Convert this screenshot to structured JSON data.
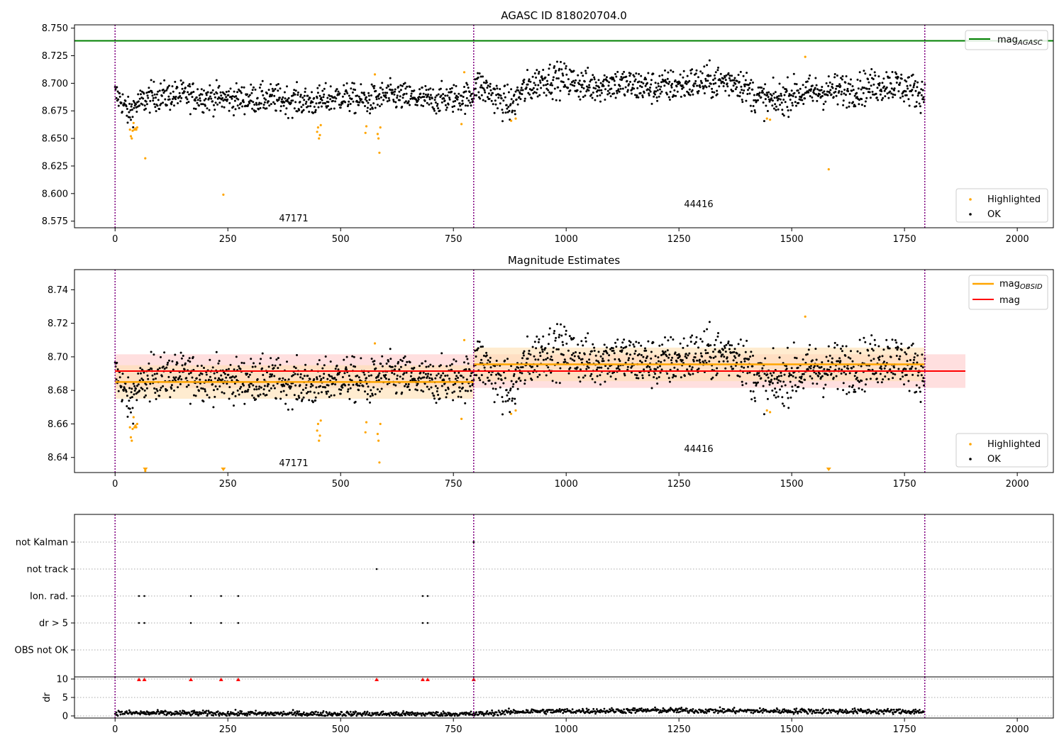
{
  "colors": {
    "ok": "#000000",
    "highlighted": "#ffa500",
    "agasc_line": "#008000",
    "mag_line": "#ff0000",
    "mag_band": "#ffd1d1",
    "obsid_line": "#ffa500",
    "obsid_band": "#ffe0b0",
    "obsid_divider": "#800080",
    "flag_points": "#000000",
    "dr_marker": "#ff0000"
  },
  "chart_data": [
    {
      "type": "scatter",
      "title": "AGASC ID 818020704.0",
      "xlim": [
        -90,
        2080
      ],
      "ylim": [
        8.569,
        8.753
      ],
      "xticks": [
        "0",
        "250",
        "500",
        "750",
        "1000",
        "1250",
        "1500",
        "1750",
        "2000"
      ],
      "yticks": [
        "8.575",
        "8.600",
        "8.625",
        "8.650",
        "8.675",
        "8.700",
        "8.725",
        "8.750"
      ],
      "grid": false,
      "obsid_boundaries": [
        0,
        795,
        1795
      ],
      "obsid_labels": [
        {
          "text": "47171",
          "x": 397,
          "y": 8.577
        },
        {
          "text": "44416",
          "x": 1297,
          "y": 8.589
        }
      ],
      "reference_line": {
        "name": "mag_AGASC",
        "legend_main": "mag",
        "legend_sub": "AGASC",
        "y": 8.7385
      },
      "legend_top": "upper right",
      "legend_bottom": "lower right",
      "series": [
        {
          "name": "Highlighted",
          "legend": "Highlighted",
          "style": "highlighted"
        },
        {
          "name": "OK",
          "legend": "OK",
          "style": "ok"
        }
      ],
      "ok_trend": [
        [
          0,
          8.69
        ],
        [
          15,
          8.684
        ],
        [
          30,
          8.672
        ],
        [
          45,
          8.68
        ],
        [
          80,
          8.688
        ],
        [
          150,
          8.689
        ],
        [
          250,
          8.686
        ],
        [
          350,
          8.686
        ],
        [
          440,
          8.683
        ],
        [
          500,
          8.688
        ],
        [
          560,
          8.684
        ],
        [
          600,
          8.689
        ],
        [
          700,
          8.685
        ],
        [
          793,
          8.688
        ],
        [
          796,
          8.7
        ],
        [
          830,
          8.692
        ],
        [
          860,
          8.683
        ],
        [
          880,
          8.68
        ],
        [
          900,
          8.692
        ],
        [
          950,
          8.704
        ],
        [
          1000,
          8.703
        ],
        [
          1050,
          8.697
        ],
        [
          1100,
          8.7
        ],
        [
          1200,
          8.696
        ],
        [
          1300,
          8.701
        ],
        [
          1380,
          8.702
        ],
        [
          1420,
          8.688
        ],
        [
          1460,
          8.683
        ],
        [
          1500,
          8.69
        ],
        [
          1550,
          8.692
        ],
        [
          1650,
          8.695
        ],
        [
          1720,
          8.7
        ],
        [
          1795,
          8.69
        ]
      ],
      "highlighted_points": [
        [
          33,
          8.658
        ],
        [
          35,
          8.652
        ],
        [
          37,
          8.65
        ],
        [
          39,
          8.657
        ],
        [
          41,
          8.664
        ],
        [
          43,
          8.658
        ],
        [
          45,
          8.659
        ],
        [
          47,
          8.658
        ],
        [
          49,
          8.66
        ],
        [
          67,
          8.632
        ],
        [
          240,
          8.599
        ],
        [
          448,
          8.656
        ],
        [
          450,
          8.66
        ],
        [
          452,
          8.65
        ],
        [
          454,
          8.653
        ],
        [
          456,
          8.662
        ],
        [
          555,
          8.655
        ],
        [
          557,
          8.661
        ],
        [
          576,
          8.708
        ],
        [
          582,
          8.654
        ],
        [
          584,
          8.65
        ],
        [
          586,
          8.637
        ],
        [
          588,
          8.66
        ],
        [
          768,
          8.663
        ],
        [
          774,
          8.71
        ],
        [
          878,
          8.666
        ],
        [
          888,
          8.668
        ],
        [
          1445,
          8.668
        ],
        [
          1452,
          8.667
        ],
        [
          1530,
          8.724
        ],
        [
          1582,
          8.622
        ]
      ]
    },
    {
      "type": "scatter",
      "title": "Magnitude Estimates",
      "xlim": [
        -90,
        2080
      ],
      "ylim": [
        8.631,
        8.752
      ],
      "xticks": [
        "0",
        "250",
        "500",
        "750",
        "1000",
        "1250",
        "1500",
        "1750",
        "2000"
      ],
      "yticks": [
        "8.64",
        "8.66",
        "8.68",
        "8.70",
        "8.72",
        "8.74"
      ],
      "grid": false,
      "obsid_boundaries": [
        0,
        795,
        1795
      ],
      "obsid_labels": [
        {
          "text": "47171",
          "x": 397,
          "y": 8.6355
        },
        {
          "text": "44416",
          "x": 1297,
          "y": 8.6445
        }
      ],
      "mag": {
        "name": "mag",
        "legend": "mag",
        "value": 8.6915,
        "band": [
          8.6815,
          8.7015
        ],
        "x_range": [
          0,
          1885
        ]
      },
      "mag_obsid": [
        {
          "name": "mag_OBSID",
          "value": 8.685,
          "band": [
            8.675,
            8.695
          ],
          "x_range": [
            0,
            795
          ]
        },
        {
          "name": "mag_OBSID",
          "value": 8.6955,
          "band": [
            8.6855,
            8.7055
          ],
          "x_range": [
            795,
            1795
          ]
        }
      ],
      "legend_obsid_main": "mag",
      "legend_obsid_sub": "OBSID",
      "legend_top": "upper right",
      "legend_bottom": "lower right",
      "series": [
        {
          "name": "Highlighted",
          "legend": "Highlighted",
          "style": "highlighted"
        },
        {
          "name": "OK",
          "legend": "OK",
          "style": "ok"
        }
      ],
      "ok_trend_ref": "same data as panel 1",
      "highlighted_points_ref": "same data as panel 1",
      "clipped_below": [
        67,
        240,
        1582
      ]
    },
    {
      "type": "scatter",
      "title": "",
      "xlim": [
        -90,
        2080
      ],
      "categories": [
        "not Kalman",
        "not track",
        "Ion. rad.",
        "dr > 5",
        "OBS not OK"
      ],
      "grid": true,
      "obsid_boundaries": [
        0,
        795,
        1795
      ],
      "flags": [
        {
          "category": "not Kalman",
          "x": [
            795
          ]
        },
        {
          "category": "not track",
          "x": [
            580
          ]
        },
        {
          "category": "Ion. rad.",
          "x": [
            53,
            65,
            168,
            235,
            273,
            682,
            693
          ]
        },
        {
          "category": "dr > 5",
          "x": [
            53,
            65,
            168,
            235,
            273,
            682,
            693
          ]
        },
        {
          "category": "OBS not OK",
          "x": []
        }
      ]
    },
    {
      "type": "scatter",
      "title": "",
      "xlim": [
        -90,
        2080
      ],
      "ylim": [
        -0.5,
        10.5
      ],
      "ylabel": "dr",
      "yticks": [
        "0",
        "5",
        "10"
      ],
      "xticks": [
        "0",
        "250",
        "500",
        "750",
        "1000",
        "1250",
        "1500",
        "1750",
        "2000"
      ],
      "grid": true,
      "obsid_boundaries": [
        0,
        795,
        1795
      ],
      "series": [
        {
          "name": "dr",
          "baseline": [
            [
              0,
              0.8
            ],
            [
              400,
              0.6
            ],
            [
              795,
              0.5
            ],
            [
              900,
              1.2
            ],
            [
              1200,
              1.5
            ],
            [
              1500,
              1.3
            ],
            [
              1795,
              1.2
            ]
          ]
        }
      ],
      "clipped_markers_x": [
        53,
        65,
        168,
        235,
        273,
        580,
        682,
        693,
        795
      ]
    }
  ]
}
